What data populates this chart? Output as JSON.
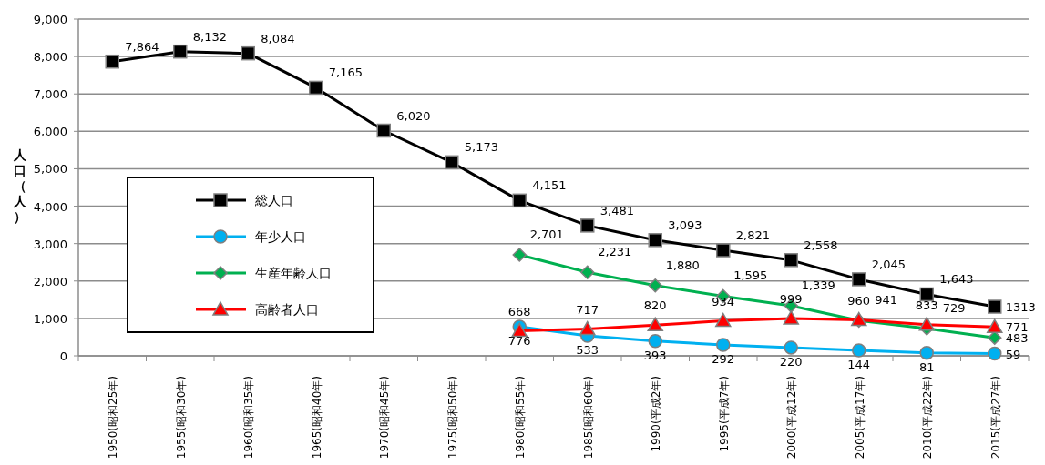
{
  "chart_data": {
    "type": "line",
    "ylabel": "人口（人）",
    "categories": [
      "1950(昭和25年)",
      "1955(昭和30年)",
      "1960(昭和35年)",
      "1965(昭和40年)",
      "1970(昭和45年)",
      "1975(昭和50年)",
      "1980(昭和55年)",
      "1985(昭和60年)",
      "1990(平成2年)",
      "1995(平成7年)",
      "2000(平成12年)",
      "2005(平成17年)",
      "2010(平成22年)",
      "2015(平成27年)"
    ],
    "ylim": [
      0,
      9000
    ],
    "yticks": [
      0,
      {
        "value": 1000,
        "label": "1,000"
      },
      {
        "value": 2000,
        "label": "2,000"
      },
      {
        "value": 3000,
        "label": "3,000"
      },
      {
        "value": 4000,
        "label": "4,000"
      },
      {
        "value": 5000,
        "label": "5,000"
      },
      {
        "value": 6000,
        "label": "6,000"
      },
      {
        "value": 7000,
        "label": "7,000"
      },
      {
        "value": 8000,
        "label": "8,000"
      },
      {
        "value": 9000,
        "label": "9,000"
      }
    ],
    "grid": "y",
    "legend": "left",
    "series": [
      {
        "name": "総人口",
        "color": "#000000",
        "marker": "square",
        "values": [
          7864,
          8132,
          8084,
          7165,
          6020,
          5173,
          4151,
          3481,
          3093,
          2821,
          2558,
          2045,
          1643,
          1313
        ],
        "value_labels": [
          "7,864",
          "8,132",
          "8,084",
          "7,165",
          "6,020",
          "5,173",
          "4,151",
          "3,481",
          "3,093",
          "2,821",
          "2,558",
          "2,045",
          "1,643",
          "1313"
        ]
      },
      {
        "name": "年少人口",
        "color": "#00b0f0",
        "marker": "circle",
        "values": [
          null,
          null,
          null,
          null,
          null,
          null,
          776,
          533,
          393,
          292,
          220,
          144,
          81,
          59
        ],
        "value_labels": [
          null,
          null,
          null,
          null,
          null,
          null,
          "776",
          "533",
          "393",
          "292",
          "220",
          "144",
          "81",
          "59"
        ]
      },
      {
        "name": "生産年齢人口",
        "color": "#00b050",
        "marker": "diamond",
        "values": [
          null,
          null,
          null,
          null,
          null,
          null,
          2701,
          2231,
          1880,
          1595,
          1339,
          941,
          729,
          483
        ],
        "value_labels": [
          null,
          null,
          null,
          null,
          null,
          null,
          "2,701",
          "2,231",
          "1,880",
          "1,595",
          "1,339",
          "941",
          "729",
          "483"
        ]
      },
      {
        "name": "高齢者人口",
        "color": "#ff0000",
        "marker": "triangle",
        "values": [
          null,
          null,
          null,
          null,
          null,
          null,
          668,
          717,
          820,
          934,
          999,
          960,
          833,
          771
        ],
        "value_labels": [
          null,
          null,
          null,
          null,
          null,
          null,
          "668",
          "717",
          "820",
          "934",
          "999",
          "960",
          "833",
          "771"
        ]
      }
    ]
  }
}
